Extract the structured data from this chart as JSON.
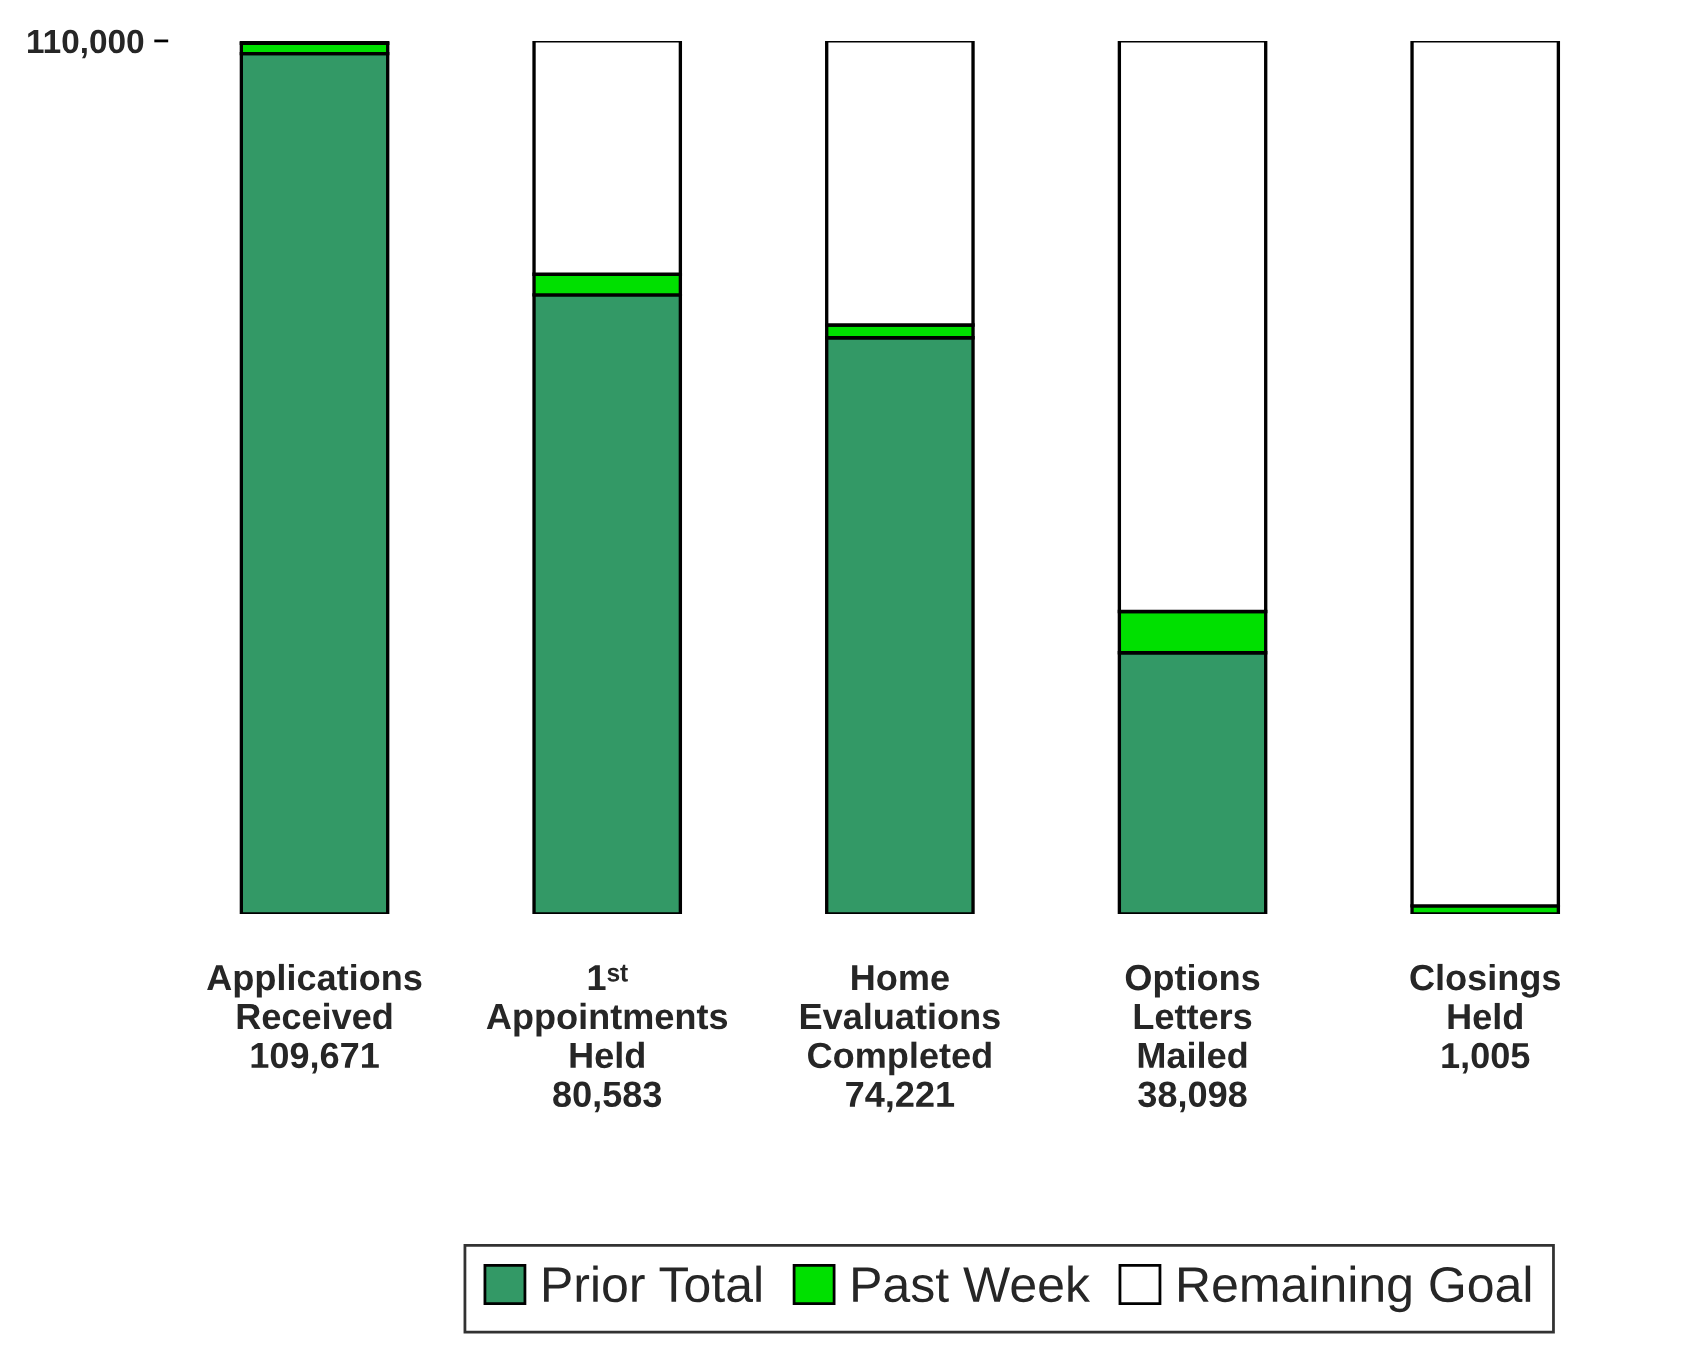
{
  "chart_data": {
    "type": "bar",
    "stacked": true,
    "categories": [
      "Applications\nReceived\n109,671",
      "1ˢᵗ\nAppointments\nHeld\n80,583",
      "Home\nEvaluations\nCompleted\n74,221",
      "Options\nLetters\nMailed\n38,098",
      "Closings\nHeld\n1,005"
    ],
    "series": [
      {
        "name": "Prior Total",
        "color": "#339966",
        "values": [
          108400,
          78000,
          72600,
          32900,
          null
        ]
      },
      {
        "name": "Past Week",
        "color": "#00e000",
        "values": [
          1300,
          2600,
          1600,
          5200,
          1000
        ]
      },
      {
        "name": "Remaining Goal",
        "color": "#ffffff",
        "values": [
          300,
          29400,
          35800,
          71900,
          109000
        ]
      }
    ],
    "ylim": [
      0,
      110000
    ],
    "yticks": [
      {
        "value": 110000,
        "label": "110,000"
      }
    ],
    "grid": false,
    "legend": "bottom"
  }
}
